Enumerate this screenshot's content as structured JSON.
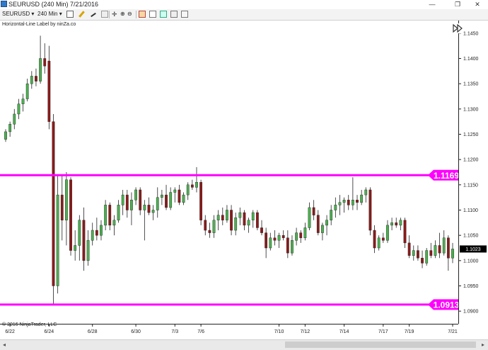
{
  "window": {
    "title": "SEURUSD (240 Min)  7/21/2016",
    "minimize_glyph": "—",
    "restore_glyph": "❐",
    "close_glyph": "✕"
  },
  "toolbar": {
    "instrument": "SEURUSD",
    "interval": "240 Min",
    "icons": [
      "bar-style-icon",
      "pencil-icon",
      "drawing-tools-icon",
      "hide-drawings-icon",
      "crosshair-icon",
      "zoom-in-icon",
      "zoom-out-icon",
      "properties-icon",
      "strategies-icon",
      "indicators-icon",
      "chart-trader-icon",
      "data-box-icon"
    ]
  },
  "indicator_label": "Horizontal-Line Label by ninZa.co",
  "copyright": "© 2016 NinjaTrader, LLC",
  "colors": {
    "up_candle": "#4caf50",
    "down_candle": "#8b1a1a",
    "wick": "#222222",
    "line": "#ff00ff",
    "price_marker_bg": "#000000"
  },
  "chart_data": {
    "type": "candlestick",
    "y_axis": {
      "ylim": [
        1.0875,
        1.1475
      ],
      "ticks": [
        "1.1450",
        "1.1400",
        "1.1350",
        "1.1300",
        "1.1250",
        "1.1200",
        "1.1150",
        "1.1100",
        "1.1050",
        "1.1000",
        "1.0950",
        "1.0900"
      ],
      "tick_values": [
        1.145,
        1.14,
        1.135,
        1.13,
        1.125,
        1.12,
        1.115,
        1.11,
        1.105,
        1.1,
        1.095,
        1.09
      ]
    },
    "x_axis": {
      "labels": [
        "6/22",
        "6/24",
        "6/28",
        "6/30",
        "7/3",
        "7/6",
        "7/10",
        "7/12",
        "7/14",
        "7/17",
        "7/19",
        "7/21"
      ],
      "label_bar_index": [
        1,
        10,
        20,
        30,
        39,
        45,
        63,
        69,
        78,
        87,
        93,
        103
      ]
    },
    "horizontal_lines": [
      {
        "value": 1.1169,
        "label": "1.1169"
      },
      {
        "value": 1.0913,
        "label": "1.0913"
      }
    ],
    "last_price": "1.1023",
    "candles": [
      [
        1.124,
        1.126,
        1.1235,
        1.1255
      ],
      [
        1.1255,
        1.1275,
        1.1245,
        1.127
      ],
      [
        1.127,
        1.13,
        1.126,
        1.129
      ],
      [
        1.129,
        1.132,
        1.128,
        1.131
      ],
      [
        1.131,
        1.133,
        1.1295,
        1.132
      ],
      [
        1.132,
        1.136,
        1.1315,
        1.135
      ],
      [
        1.135,
        1.1375,
        1.134,
        1.1365
      ],
      [
        1.1365,
        1.138,
        1.1345,
        1.1355
      ],
      [
        1.1355,
        1.1445,
        1.135,
        1.14
      ],
      [
        1.14,
        1.143,
        1.137,
        1.1385
      ],
      [
        1.1395,
        1.1425,
        1.126,
        1.1275
      ],
      [
        1.1275,
        1.129,
        1.0913,
        1.095
      ],
      [
        1.095,
        1.117,
        1.0935,
        1.113
      ],
      [
        1.113,
        1.117,
        1.104,
        1.108
      ],
      [
        1.108,
        1.1175,
        1.103,
        1.116
      ],
      [
        1.116,
        1.1165,
        1.101,
        1.102
      ],
      [
        1.102,
        1.106,
        1.1,
        1.103
      ],
      [
        1.103,
        1.109,
        1.1,
        1.108
      ],
      [
        1.108,
        1.1105,
        1.098,
        1.1
      ],
      [
        1.1,
        1.106,
        1.099,
        1.104
      ],
      [
        1.104,
        1.1075,
        1.103,
        1.106
      ],
      [
        1.106,
        1.1085,
        1.104,
        1.105
      ],
      [
        1.105,
        1.108,
        1.104,
        1.107
      ],
      [
        1.107,
        1.112,
        1.106,
        1.111
      ],
      [
        1.111,
        1.1115,
        1.106,
        1.107
      ],
      [
        1.107,
        1.109,
        1.105,
        1.108
      ],
      [
        1.108,
        1.112,
        1.1075,
        1.111
      ],
      [
        1.111,
        1.114,
        1.109,
        1.113
      ],
      [
        1.113,
        1.114,
        1.1085,
        1.11
      ],
      [
        1.11,
        1.1135,
        1.107,
        1.112
      ],
      [
        1.112,
        1.1145,
        1.111,
        1.114
      ],
      [
        1.114,
        1.1145,
        1.109,
        1.11
      ],
      [
        1.11,
        1.112,
        1.104,
        1.111
      ],
      [
        1.111,
        1.1125,
        1.109,
        1.1095
      ],
      [
        1.1095,
        1.111,
        1.108,
        1.11
      ],
      [
        1.11,
        1.1145,
        1.1085,
        1.1125
      ],
      [
        1.1125,
        1.114,
        1.111,
        1.113
      ],
      [
        1.113,
        1.115,
        1.11,
        1.1105
      ],
      [
        1.1105,
        1.1145,
        1.11,
        1.1135
      ],
      [
        1.1135,
        1.1145,
        1.1115,
        1.114
      ],
      [
        1.114,
        1.115,
        1.111,
        1.1115
      ],
      [
        1.1115,
        1.1135,
        1.111,
        1.113
      ],
      [
        1.113,
        1.1155,
        1.112,
        1.115
      ],
      [
        1.115,
        1.116,
        1.114,
        1.1145
      ],
      [
        1.1145,
        1.1185,
        1.1135,
        1.1155
      ],
      [
        1.1155,
        1.116,
        1.107,
        1.108
      ],
      [
        1.108,
        1.109,
        1.105,
        1.106
      ],
      [
        1.106,
        1.1075,
        1.1045,
        1.1055
      ],
      [
        1.1055,
        1.109,
        1.1045,
        1.108
      ],
      [
        1.108,
        1.11,
        1.106,
        1.109
      ],
      [
        1.109,
        1.1105,
        1.107,
        1.108
      ],
      [
        1.108,
        1.111,
        1.1075,
        1.11
      ],
      [
        1.11,
        1.111,
        1.105,
        1.106
      ],
      [
        1.106,
        1.1095,
        1.105,
        1.1085
      ],
      [
        1.1085,
        1.1105,
        1.107,
        1.1095
      ],
      [
        1.1095,
        1.11,
        1.106,
        1.107
      ],
      [
        1.107,
        1.1085,
        1.1055,
        1.108
      ],
      [
        1.108,
        1.11,
        1.1065,
        1.1095
      ],
      [
        1.1095,
        1.11,
        1.106,
        1.1065
      ],
      [
        1.1065,
        1.108,
        1.105,
        1.1055
      ],
      [
        1.1055,
        1.1065,
        1.1005,
        1.1025
      ],
      [
        1.1025,
        1.1055,
        1.102,
        1.1045
      ],
      [
        1.1045,
        1.106,
        1.103,
        1.104
      ],
      [
        1.104,
        1.1055,
        1.1025,
        1.105
      ],
      [
        1.105,
        1.106,
        1.104,
        1.1045
      ],
      [
        1.1045,
        1.106,
        1.1005,
        1.1015
      ],
      [
        1.1015,
        1.105,
        1.101,
        1.104
      ],
      [
        1.104,
        1.1065,
        1.103,
        1.1055
      ],
      [
        1.1055,
        1.106,
        1.1035,
        1.1045
      ],
      [
        1.1045,
        1.1075,
        1.104,
        1.1065
      ],
      [
        1.1065,
        1.1115,
        1.106,
        1.1105
      ],
      [
        1.1105,
        1.112,
        1.108,
        1.109
      ],
      [
        1.109,
        1.11,
        1.105,
        1.1055
      ],
      [
        1.1055,
        1.1075,
        1.104,
        1.107
      ],
      [
        1.107,
        1.109,
        1.105,
        1.108
      ],
      [
        1.108,
        1.111,
        1.107,
        1.11
      ],
      [
        1.11,
        1.1125,
        1.1085,
        1.111
      ],
      [
        1.111,
        1.113,
        1.109,
        1.1115
      ],
      [
        1.1115,
        1.1125,
        1.1095,
        1.112
      ],
      [
        1.112,
        1.113,
        1.11,
        1.111
      ],
      [
        1.111,
        1.1165,
        1.11,
        1.112
      ],
      [
        1.112,
        1.113,
        1.11,
        1.1115
      ],
      [
        1.1115,
        1.114,
        1.111,
        1.113
      ],
      [
        1.113,
        1.1145,
        1.1115,
        1.114
      ],
      [
        1.114,
        1.1145,
        1.105,
        1.106
      ],
      [
        1.106,
        1.107,
        1.1015,
        1.1025
      ],
      [
        1.1025,
        1.105,
        1.102,
        1.1045
      ],
      [
        1.1045,
        1.1055,
        1.1035,
        1.104
      ],
      [
        1.104,
        1.108,
        1.1035,
        1.107
      ],
      [
        1.107,
        1.1085,
        1.106,
        1.1075
      ],
      [
        1.1075,
        1.1085,
        1.1065,
        1.107
      ],
      [
        1.107,
        1.1085,
        1.106,
        1.108
      ],
      [
        1.108,
        1.1085,
        1.1025,
        1.1035
      ],
      [
        1.1035,
        1.105,
        1.1005,
        1.101
      ],
      [
        1.101,
        1.103,
        1.1,
        1.102
      ],
      [
        1.102,
        1.103,
        1.1,
        1.1005
      ],
      [
        1.1005,
        1.102,
        1.0985,
        1.0995
      ],
      [
        1.0995,
        1.1025,
        1.099,
        1.102
      ],
      [
        1.102,
        1.1035,
        1.1005,
        1.101
      ],
      [
        1.101,
        1.104,
        1.1005,
        1.103
      ],
      [
        1.103,
        1.1055,
        1.1005,
        1.1015
      ],
      [
        1.1015,
        1.106,
        1.101,
        1.1045
      ],
      [
        1.1045,
        1.105,
        1.098,
        1.1005
      ],
      [
        1.1005,
        1.1035,
        1.0995,
        1.1023
      ]
    ]
  }
}
